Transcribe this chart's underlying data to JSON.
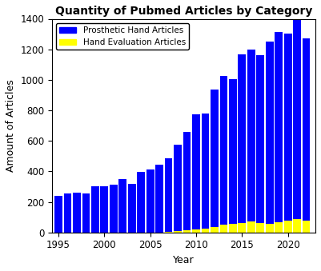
{
  "years": [
    1995,
    1996,
    1997,
    1998,
    1999,
    2000,
    2001,
    2002,
    2003,
    2004,
    2005,
    2006,
    2007,
    2008,
    2009,
    2010,
    2011,
    2012,
    2013,
    2014,
    2015,
    2016,
    2017,
    2018,
    2019,
    2020,
    2021,
    2022
  ],
  "prosthetic_hand": [
    240,
    255,
    260,
    255,
    305,
    305,
    315,
    350,
    320,
    395,
    415,
    445,
    480,
    565,
    645,
    755,
    755,
    900,
    975,
    950,
    1105,
    1130,
    1100,
    1195,
    1250,
    1225,
    1300,
    1195
  ],
  "hand_evaluation": [
    0,
    0,
    0,
    0,
    0,
    0,
    0,
    0,
    0,
    0,
    0,
    0,
    5,
    10,
    15,
    20,
    25,
    35,
    50,
    55,
    60,
    70,
    60,
    55,
    65,
    80,
    90,
    75
  ],
  "title": "Quantity of Pubmed Articles by Category",
  "xlabel": "Year",
  "ylabel": "Amount of Articles",
  "ylim": [
    0,
    1400
  ],
  "yticks": [
    0,
    200,
    400,
    600,
    800,
    1000,
    1200,
    1400
  ],
  "xticks": [
    1995,
    2000,
    2005,
    2010,
    2015,
    2020
  ],
  "blue_color": "#0000FF",
  "yellow_color": "#FFFF00",
  "background_color": "#FFFFFF",
  "legend_prosthetic": "Prosthetic Hand Articles",
  "legend_evaluation": "Hand Evaluation Articles",
  "title_fontsize": 10,
  "axis_fontsize": 9,
  "tick_fontsize": 8.5
}
